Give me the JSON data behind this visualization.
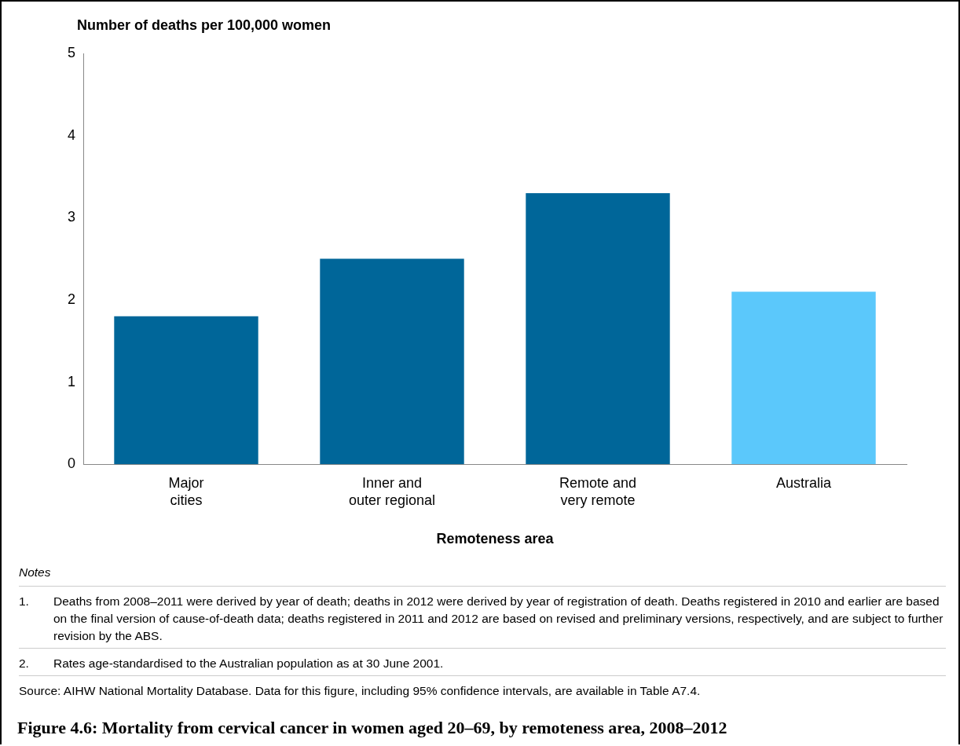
{
  "chart_data": {
    "type": "bar",
    "title": "Figure 4.6: Mortality from cervical cancer in women aged 20–69, by remoteness area, 2008–2012",
    "ylabel": "Number of deaths per 100,000 women",
    "xlabel": "Remoteness area",
    "categories": [
      "Major cities",
      "Inner and outer regional",
      "Remote and very remote",
      "Australia"
    ],
    "values": [
      1.8,
      2.5,
      3.3,
      2.1
    ],
    "colors": [
      "#006699",
      "#006699",
      "#006699",
      "#5bc8fb"
    ],
    "ylim": [
      0,
      5
    ],
    "yticks": [
      0,
      1,
      2,
      3,
      4,
      5
    ],
    "grid": false,
    "legend": false,
    "annotations": [
      "Notes",
      "1.\tDeaths from 2008–2011 were derived by year of death; deaths in 2012 were derived by year of registration of death. Deaths registered in 2010 and earlier are based on the final version of cause-of-death data; deaths registered in 2011 and 2012 are based on revised and preliminary versions, respectively, and are subject to further revision by the ABS.",
      "2.\tRates age-standardised to the Australian population as at 30 June 2001.",
      "Source: AIHW National Mortality Database. Data for this figure, including 95% confidence intervals, are available in Table A7.4."
    ]
  }
}
